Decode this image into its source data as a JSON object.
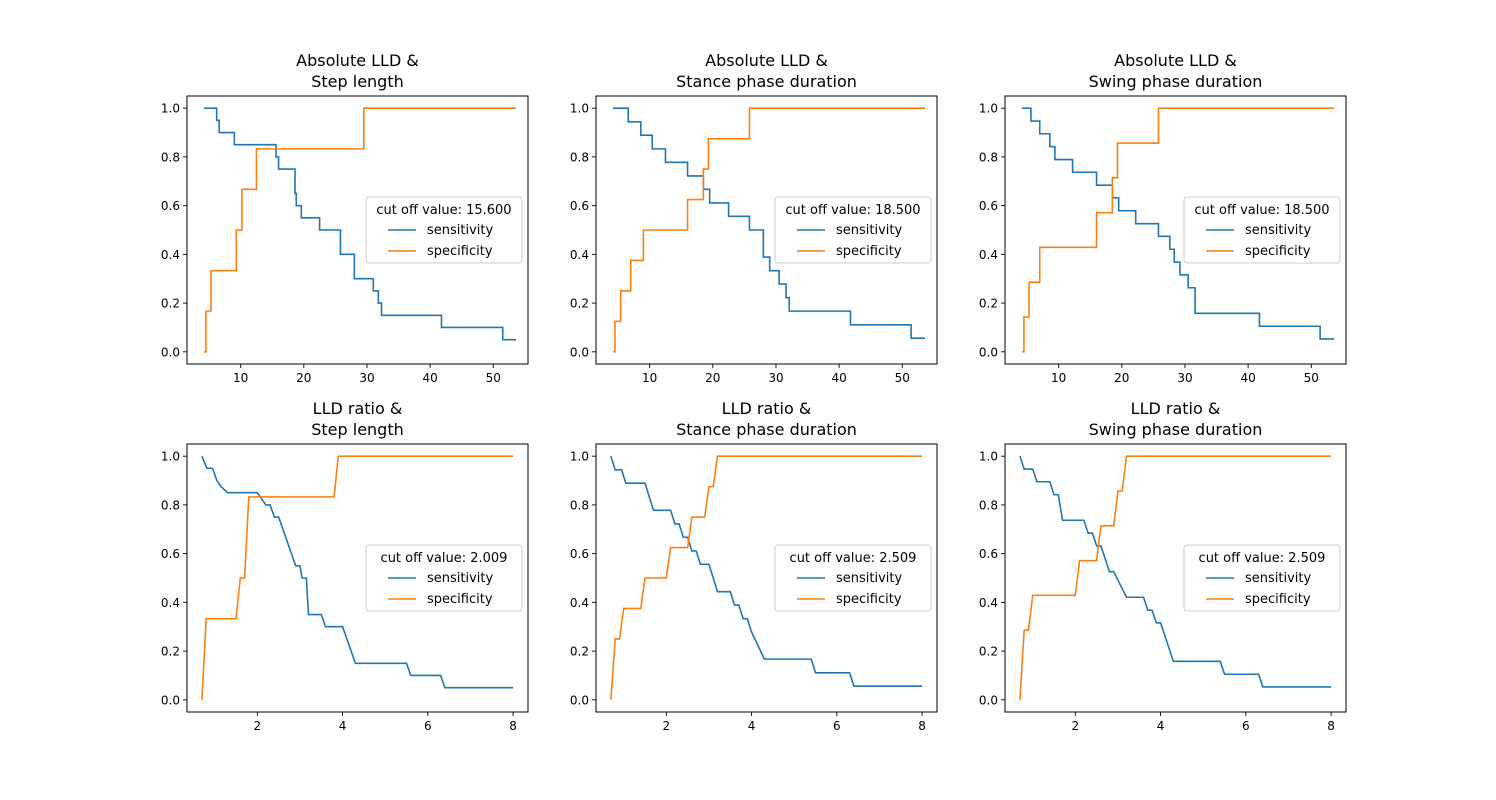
{
  "colors": {
    "sensitivity": "#1f77b4",
    "specificity": "#ff7f0e"
  },
  "chart_data": [
    {
      "type": "line",
      "title": [
        "Absolute LLD &",
        "Step length"
      ],
      "xlim": [
        1.5,
        55.5
      ],
      "ylim": [
        -0.05,
        1.05
      ],
      "xticks": [
        10,
        20,
        30,
        40,
        50
      ],
      "yticks": [
        0.0,
        0.2,
        0.4,
        0.6,
        0.8,
        1.0
      ],
      "xtick_labels": [
        "10",
        "20",
        "30",
        "40",
        "50"
      ],
      "ytick_labels": [
        "0.0",
        "0.2",
        "0.4",
        "0.6",
        "0.8",
        "1.0"
      ],
      "legend": {
        "title": "cut off value: 15.600",
        "position": "center-right",
        "entries": [
          "sensitivity",
          "specificity"
        ]
      },
      "series": [
        {
          "name": "sensitivity",
          "step": true,
          "x": [
            4.2,
            6.2,
            6.6,
            7.2,
            9.0,
            15.6,
            16.0,
            18.6,
            18.8,
            19.2,
            19.6,
            22.5,
            25.8,
            28.0,
            31.0,
            31.8,
            32.3,
            41.8,
            51.5,
            53.6
          ],
          "y": [
            1.0,
            0.95,
            0.9,
            0.9,
            0.85,
            0.8,
            0.75,
            0.65,
            0.6,
            0.6,
            0.55,
            0.5,
            0.4,
            0.3,
            0.25,
            0.2,
            0.15,
            0.1,
            0.05,
            0.05
          ]
        },
        {
          "name": "specificity",
          "step": true,
          "x": [
            4.2,
            4.5,
            5.3,
            9.3,
            10.2,
            12.5,
            29.5,
            53.6
          ],
          "y": [
            0.0,
            0.167,
            0.333,
            0.5,
            0.667,
            0.833,
            1.0,
            1.0
          ]
        }
      ]
    },
    {
      "type": "line",
      "title": [
        "Absolute LLD &",
        "Stance phase duration"
      ],
      "xlim": [
        1.5,
        55.5
      ],
      "ylim": [
        -0.05,
        1.05
      ],
      "xticks": [
        10,
        20,
        30,
        40,
        50
      ],
      "yticks": [
        0.0,
        0.2,
        0.4,
        0.6,
        0.8,
        1.0
      ],
      "xtick_labels": [
        "10",
        "20",
        "30",
        "40",
        "50"
      ],
      "ytick_labels": [
        "0.0",
        "0.2",
        "0.4",
        "0.6",
        "0.8",
        "1.0"
      ],
      "legend": {
        "title": "cut off value: 18.500",
        "position": "center-right",
        "entries": [
          "sensitivity",
          "specificity"
        ]
      },
      "series": [
        {
          "name": "sensitivity",
          "step": true,
          "x": [
            4.2,
            6.6,
            8.6,
            10.4,
            12.5,
            16.0,
            18.5,
            19.5,
            22.5,
            25.8,
            28.0,
            29.0,
            30.5,
            31.6,
            32.1,
            41.8,
            51.4,
            53.6
          ],
          "y": [
            1.0,
            0.944,
            0.889,
            0.833,
            0.778,
            0.722,
            0.667,
            0.611,
            0.556,
            0.5,
            0.389,
            0.333,
            0.278,
            0.222,
            0.167,
            0.111,
            0.056,
            0.056
          ]
        },
        {
          "name": "specificity",
          "step": true,
          "x": [
            4.2,
            4.5,
            5.4,
            7.0,
            9.0,
            16.0,
            18.5,
            19.3,
            25.8,
            53.6
          ],
          "y": [
            0.0,
            0.125,
            0.25,
            0.375,
            0.5,
            0.625,
            0.75,
            0.875,
            1.0,
            1.0
          ]
        }
      ]
    },
    {
      "type": "line",
      "title": [
        "Absolute LLD &",
        "Swing phase duration"
      ],
      "xlim": [
        1.5,
        55.5
      ],
      "ylim": [
        -0.05,
        1.05
      ],
      "xticks": [
        10,
        20,
        30,
        40,
        50
      ],
      "yticks": [
        0.0,
        0.2,
        0.4,
        0.6,
        0.8,
        1.0
      ],
      "xtick_labels": [
        "10",
        "20",
        "30",
        "40",
        "50"
      ],
      "ytick_labels": [
        "0.0",
        "0.2",
        "0.4",
        "0.6",
        "0.8",
        "1.0"
      ],
      "legend": {
        "title": "cut off value: 18.500",
        "position": "center-right",
        "entries": [
          "sensitivity",
          "specificity"
        ]
      },
      "series": [
        {
          "name": "sensitivity",
          "step": true,
          "x": [
            4.2,
            5.6,
            7.0,
            8.6,
            9.4,
            10.4,
            12.2,
            14.5,
            16.0,
            18.5,
            19.5,
            22.2,
            25.8,
            27.6,
            28.3,
            29.2,
            30.5,
            31.6,
            41.8,
            51.4,
            53.6
          ],
          "y": [
            1.0,
            0.947,
            0.895,
            0.842,
            0.789,
            0.789,
            0.737,
            0.737,
            0.684,
            0.632,
            0.579,
            0.526,
            0.474,
            0.421,
            0.368,
            0.316,
            0.263,
            0.158,
            0.105,
            0.053,
            0.053
          ]
        },
        {
          "name": "specificity",
          "step": true,
          "x": [
            4.2,
            4.5,
            5.3,
            7.0,
            16.0,
            18.5,
            19.3,
            25.8,
            53.6
          ],
          "y": [
            0.0,
            0.143,
            0.286,
            0.429,
            0.571,
            0.714,
            0.857,
            1.0,
            1.0
          ]
        }
      ]
    },
    {
      "type": "line",
      "title": [
        "LLD ratio &",
        "Step length"
      ],
      "xlim": [
        0.35,
        8.35
      ],
      "ylim": [
        -0.05,
        1.05
      ],
      "xticks": [
        2,
        4,
        6,
        8
      ],
      "yticks": [
        0.0,
        0.2,
        0.4,
        0.6,
        0.8,
        1.0
      ],
      "xtick_labels": [
        "2",
        "4",
        "6",
        "8"
      ],
      "ytick_labels": [
        "0.0",
        "0.2",
        "0.4",
        "0.6",
        "0.8",
        "1.0"
      ],
      "legend": {
        "title": "cut off value: 2.009",
        "position": "center-right",
        "entries": [
          "sensitivity",
          "specificity"
        ]
      },
      "series": [
        {
          "name": "sensitivity",
          "step": false,
          "x": [
            0.7,
            0.82,
            0.95,
            1.05,
            1.15,
            1.3,
            2.0,
            2.1,
            2.2,
            2.3,
            2.4,
            2.5,
            2.6,
            2.7,
            2.8,
            2.9,
            3.0,
            3.05,
            3.15,
            3.2,
            3.5,
            3.6,
            3.9,
            4.0,
            4.1,
            4.3,
            5.0,
            5.5,
            5.6,
            6.3,
            6.4,
            8.0
          ],
          "y": [
            1.0,
            0.95,
            0.95,
            0.9,
            0.875,
            0.85,
            0.85,
            0.825,
            0.8,
            0.8,
            0.75,
            0.75,
            0.7,
            0.65,
            0.6,
            0.55,
            0.55,
            0.5,
            0.5,
            0.35,
            0.35,
            0.3,
            0.3,
            0.3,
            0.25,
            0.15,
            0.15,
            0.15,
            0.1,
            0.1,
            0.05,
            0.05
          ]
        },
        {
          "name": "specificity",
          "step": false,
          "x": [
            0.7,
            0.8,
            1.5,
            1.6,
            1.7,
            1.8,
            3.8,
            3.9,
            8.0
          ],
          "y": [
            0.0,
            0.333,
            0.333,
            0.5,
            0.5,
            0.833,
            0.833,
            1.0,
            1.0
          ]
        }
      ]
    },
    {
      "type": "line",
      "title": [
        "LLD ratio &",
        "Stance phase duration"
      ],
      "xlim": [
        0.35,
        8.35
      ],
      "ylim": [
        -0.05,
        1.05
      ],
      "xticks": [
        2,
        4,
        6,
        8
      ],
      "yticks": [
        0.0,
        0.2,
        0.4,
        0.6,
        0.8,
        1.0
      ],
      "xtick_labels": [
        "2",
        "4",
        "6",
        "8"
      ],
      "ytick_labels": [
        "0.0",
        "0.2",
        "0.4",
        "0.6",
        "0.8",
        "1.0"
      ],
      "legend": {
        "title": "cut off value: 2.509",
        "position": "center-right",
        "entries": [
          "sensitivity",
          "specificity"
        ]
      },
      "series": [
        {
          "name": "sensitivity",
          "step": false,
          "x": [
            0.7,
            0.8,
            0.95,
            1.05,
            1.15,
            1.5,
            1.6,
            1.7,
            2.1,
            2.2,
            2.3,
            2.4,
            2.5,
            2.6,
            2.7,
            2.8,
            3.0,
            3.1,
            3.2,
            3.5,
            3.6,
            3.7,
            3.8,
            3.9,
            4.0,
            4.3,
            5.4,
            5.5,
            6.3,
            6.4,
            8.0
          ],
          "y": [
            1.0,
            0.944,
            0.944,
            0.889,
            0.889,
            0.889,
            0.833,
            0.778,
            0.778,
            0.722,
            0.722,
            0.667,
            0.667,
            0.611,
            0.611,
            0.556,
            0.556,
            0.5,
            0.444,
            0.444,
            0.389,
            0.389,
            0.333,
            0.333,
            0.278,
            0.167,
            0.167,
            0.111,
            0.111,
            0.056,
            0.056
          ]
        },
        {
          "name": "specificity",
          "step": false,
          "x": [
            0.7,
            0.8,
            0.9,
            1.0,
            1.4,
            1.5,
            2.0,
            2.1,
            2.5,
            2.6,
            2.9,
            3.0,
            3.1,
            3.2,
            8.0
          ],
          "y": [
            0.0,
            0.25,
            0.25,
            0.375,
            0.375,
            0.5,
            0.5,
            0.625,
            0.625,
            0.75,
            0.75,
            0.875,
            0.875,
            1.0,
            1.0
          ]
        }
      ]
    },
    {
      "type": "line",
      "title": [
        "LLD ratio &",
        "Swing phase duration"
      ],
      "xlim": [
        0.35,
        8.35
      ],
      "ylim": [
        -0.05,
        1.05
      ],
      "xticks": [
        2,
        4,
        6,
        8
      ],
      "yticks": [
        0.0,
        0.2,
        0.4,
        0.6,
        0.8,
        1.0
      ],
      "xtick_labels": [
        "2",
        "4",
        "6",
        "8"
      ],
      "ytick_labels": [
        "0.0",
        "0.2",
        "0.4",
        "0.6",
        "0.8",
        "1.0"
      ],
      "legend": {
        "title": "cut off value: 2.509",
        "position": "center-right",
        "entries": [
          "sensitivity",
          "specificity"
        ]
      },
      "series": [
        {
          "name": "sensitivity",
          "step": false,
          "x": [
            0.7,
            0.8,
            1.0,
            1.1,
            1.4,
            1.5,
            1.6,
            1.7,
            2.2,
            2.3,
            2.4,
            2.5,
            2.6,
            2.7,
            2.8,
            2.9,
            3.2,
            3.3,
            3.6,
            3.7,
            3.8,
            3.9,
            4.0,
            4.3,
            5.4,
            5.5,
            6.3,
            6.4,
            8.0
          ],
          "y": [
            1.0,
            0.947,
            0.947,
            0.895,
            0.895,
            0.842,
            0.842,
            0.737,
            0.737,
            0.684,
            0.684,
            0.632,
            0.632,
            0.579,
            0.526,
            0.526,
            0.421,
            0.421,
            0.421,
            0.368,
            0.368,
            0.316,
            0.316,
            0.158,
            0.158,
            0.105,
            0.105,
            0.053,
            0.053
          ]
        },
        {
          "name": "specificity",
          "step": false,
          "x": [
            0.7,
            0.8,
            0.9,
            1.0,
            1.4,
            1.5,
            2.0,
            2.1,
            2.5,
            2.6,
            2.9,
            3.0,
            3.1,
            3.2,
            8.0
          ],
          "y": [
            0.0,
            0.286,
            0.286,
            0.429,
            0.429,
            0.429,
            0.429,
            0.571,
            0.571,
            0.714,
            0.714,
            0.857,
            0.857,
            1.0,
            1.0
          ]
        }
      ]
    }
  ]
}
